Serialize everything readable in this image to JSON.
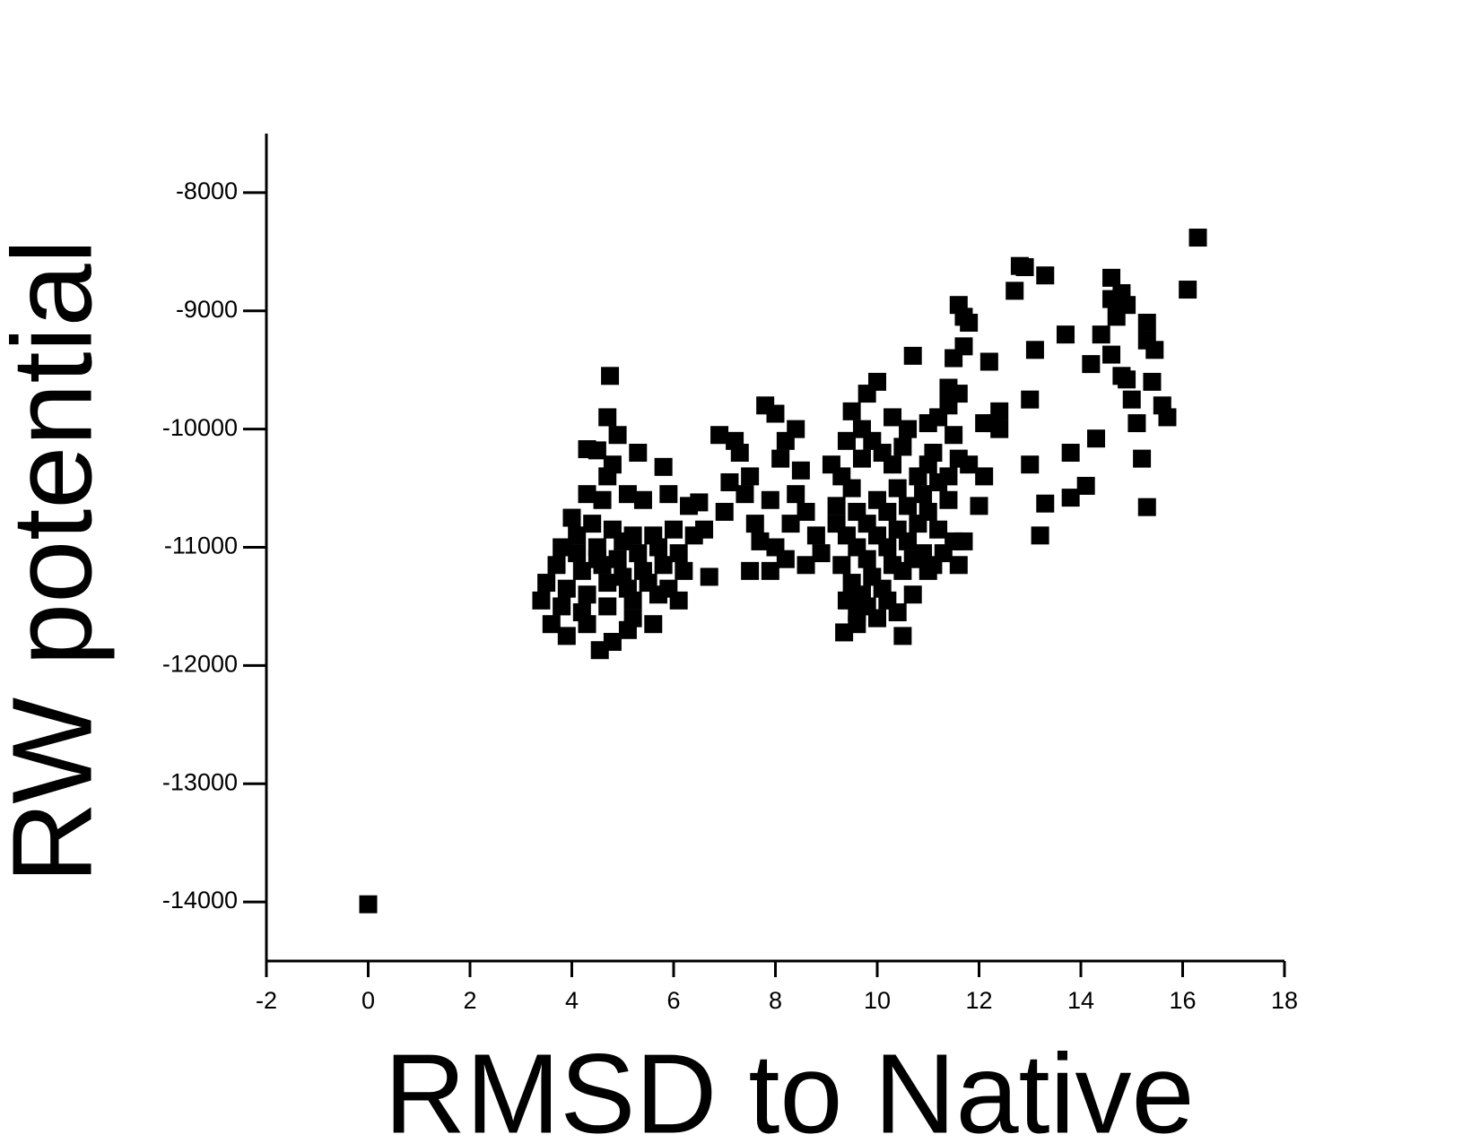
{
  "chart_data": {
    "type": "scatter",
    "x_label": "RMSD to Native",
    "y_label": "RW potential",
    "color": "#000000",
    "xlim": [
      -2,
      18
    ],
    "xticks": [
      -2,
      0,
      2,
      4,
      6,
      8,
      10,
      12,
      14,
      16,
      18
    ],
    "ylim": [
      -14500,
      -7500
    ],
    "yticks": [
      -14000,
      -13000,
      -12000,
      -11000,
      -10000,
      -9000,
      -8000
    ],
    "x": [
      0,
      4.75,
      4.7,
      4.9,
      4.3,
      4.5,
      4.8,
      5.3,
      5.8,
      4.7,
      4.3,
      4.6,
      5.1,
      5.4,
      5.9,
      6.3,
      6.5,
      4.0,
      4.4,
      4.8,
      5.2,
      5.6,
      6.0,
      6.4,
      6.6,
      3.8,
      4.1,
      4.5,
      4.9,
      5.3,
      5.7,
      6.1,
      3.7,
      4.2,
      4.6,
      5.0,
      5.4,
      5.8,
      6.2,
      6.7,
      3.5,
      3.9,
      4.3,
      4.7,
      5.1,
      5.5,
      5.9,
      3.4,
      3.8,
      4.2,
      4.7,
      5.2,
      5.7,
      6.1,
      3.6,
      3.9,
      4.3,
      4.55,
      4.8,
      5.1,
      5.2,
      5.6,
      4.5,
      5.0,
      4.1,
      6.9,
      7.2,
      7.3,
      7.5,
      7.8,
      8.0,
      8.2,
      8.4,
      7.1,
      7.4,
      7.0,
      7.6,
      7.9,
      8.1,
      8.5,
      7.7,
      8.0,
      8.3,
      8.6,
      8.8,
      7.5,
      7.9,
      8.2,
      8.6,
      8.9,
      8.4,
      9.1,
      9.3,
      9.5,
      9.7,
      9.9,
      10.1,
      10.3,
      10.5,
      9.8,
      10.0,
      9.5,
      9.7,
      10.3,
      10.6,
      10.7,
      9.6,
      9.8,
      10.0,
      10.2,
      10.4,
      10.6,
      10.8,
      11.0,
      11.2,
      9.2,
      9.4,
      9.6,
      9.8,
      10.0,
      10.2,
      10.4,
      10.6,
      10.8,
      11.0,
      11.2,
      11.4,
      9.3,
      9.5,
      9.7,
      9.9,
      10.1,
      10.3,
      10.5,
      10.7,
      10.9,
      11.1,
      11.3,
      11.5,
      9.4,
      9.6,
      9.8,
      10.0,
      10.2,
      10.4,
      10.7,
      9.35,
      9.6,
      10.5,
      11.0,
      11.6,
      11.7,
      11.4,
      11.6,
      11.8,
      11.5,
      11.2,
      11.0,
      11.4,
      11.6,
      11.5,
      11.7,
      11.6,
      11.8,
      11.7,
      11.4,
      12.0,
      12.1,
      12.1,
      12.2,
      12.3,
      12.4,
      12.4,
      9.4,
      9.2,
      10.9,
      11.1,
      12.7,
      12.8,
      12.9,
      13.3,
      13.0,
      13.1,
      13.0,
      13.3,
      13.2,
      13.7,
      13.8,
      13.8,
      14.1,
      14.2,
      14.3,
      14.4,
      14.6,
      14.6,
      14.7,
      14.6,
      14.8,
      14.9,
      14.8,
      14.9,
      15.0,
      15.1,
      15.2,
      15.3,
      15.3,
      15.4,
      15.45,
      15.3,
      15.6,
      15.7,
      16.1,
      16.3
    ],
    "values": [
      -14020,
      -9550,
      -9900,
      -10050,
      -10170,
      -10180,
      -10300,
      -10200,
      -10320,
      -10400,
      -10550,
      -10600,
      -10550,
      -10600,
      -10550,
      -10650,
      -10620,
      -10750,
      -10800,
      -10850,
      -10900,
      -10900,
      -10850,
      -10900,
      -10850,
      -11000,
      -11050,
      -11000,
      -11100,
      -11050,
      -11000,
      -11050,
      -11150,
      -11200,
      -11150,
      -11250,
      -11200,
      -11150,
      -11200,
      -11250,
      -11300,
      -11350,
      -11400,
      -11300,
      -11350,
      -11300,
      -11350,
      -11450,
      -11500,
      -11550,
      -11500,
      -11450,
      -11400,
      -11450,
      -11650,
      -11750,
      -11650,
      -11870,
      -11800,
      -11700,
      -11600,
      -11650,
      -11100,
      -10950,
      -10900,
      -10050,
      -10100,
      -10200,
      -10400,
      -9800,
      -9870,
      -10100,
      -10000,
      -10450,
      -10550,
      -10700,
      -10800,
      -10600,
      -10250,
      -10350,
      -10950,
      -11000,
      -10800,
      -10700,
      -10900,
      -11200,
      -11200,
      -11100,
      -11150,
      -11050,
      -10550,
      -10300,
      -10400,
      -10500,
      -10250,
      -10100,
      -10200,
      -10300,
      -10150,
      -9700,
      -9600,
      -9850,
      -10000,
      -9900,
      -10000,
      -9380,
      -10700,
      -10800,
      -10600,
      -10700,
      -10500,
      -10650,
      -10400,
      -10300,
      -10450,
      -10800,
      -10900,
      -11000,
      -11100,
      -10900,
      -11000,
      -10850,
      -10950,
      -10800,
      -10700,
      -10850,
      -10600,
      -11150,
      -11300,
      -11400,
      -11250,
      -11350,
      -11150,
      -11200,
      -11100,
      -11050,
      -11150,
      -11050,
      -10950,
      -11450,
      -11550,
      -11500,
      -11600,
      -11450,
      -11550,
      -11400,
      -11720,
      -11650,
      -11750,
      -11200,
      -11150,
      -10950,
      -10400,
      -10250,
      -10300,
      -10050,
      -9900,
      -9950,
      -9800,
      -9700,
      -9400,
      -9300,
      -8950,
      -9100,
      -9050,
      -9650,
      -10650,
      -10400,
      -9950,
      -9430,
      -9950,
      -10000,
      -9850,
      -10100,
      -10650,
      -10550,
      -10200,
      -8830,
      -8620,
      -8630,
      -8700,
      -9750,
      -9330,
      -10300,
      -10630,
      -10900,
      -9200,
      -10200,
      -10580,
      -10480,
      -9450,
      -10080,
      -9200,
      -8720,
      -8900,
      -9050,
      -9370,
      -8850,
      -8950,
      -9550,
      -9580,
      -9750,
      -9950,
      -10250,
      -9100,
      -9250,
      -9600,
      -9330,
      -10660,
      -9800,
      -9900,
      -8820,
      -8380
    ]
  }
}
